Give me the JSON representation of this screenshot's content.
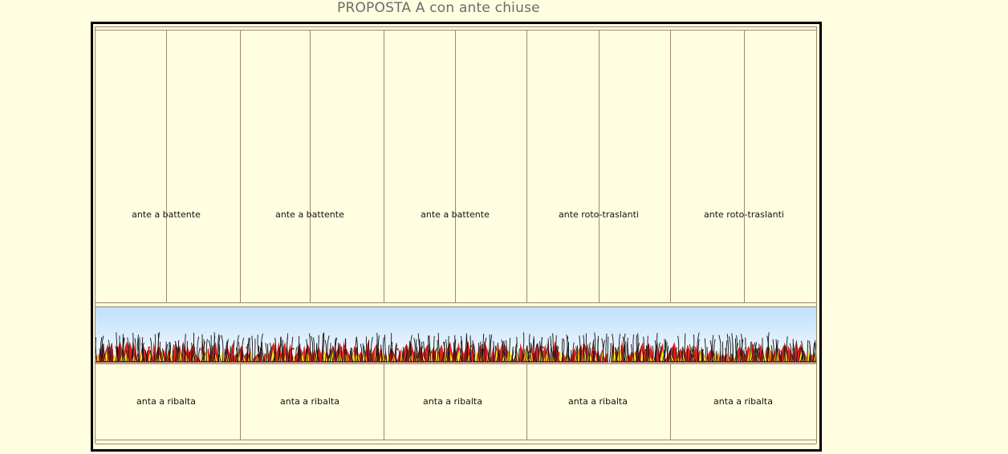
{
  "title": "PROPOSTA A con ante chiuse",
  "upper_sections": [
    {
      "label": "ante a battente"
    },
    {
      "label": "ante a battente"
    },
    {
      "label": "ante a battente"
    },
    {
      "label": "ante roto-traslanti"
    },
    {
      "label": "ante roto-traslanti"
    }
  ],
  "lower_sections": [
    {
      "label": "anta a ribalta"
    },
    {
      "label": "anta a ribalta"
    },
    {
      "label": "anta a ribalta"
    },
    {
      "label": "anta a ribalta"
    },
    {
      "label": "anta a ribalta"
    }
  ],
  "colors": {
    "background": "#FFFEE0",
    "outline": "#000000",
    "panel_line": "#9C8A6A",
    "sky_top": "#BFE0FB",
    "flame_red": "#D7261E",
    "flame_yellow": "#F6E21A",
    "grass_dark": "#111111"
  }
}
